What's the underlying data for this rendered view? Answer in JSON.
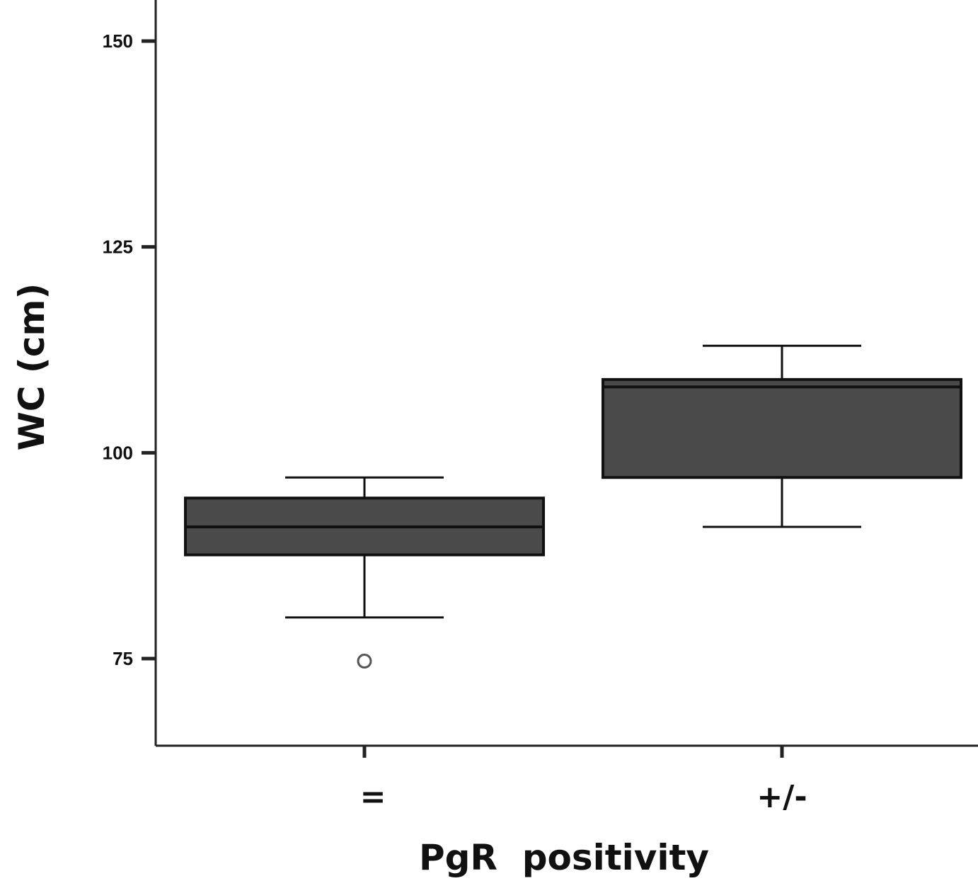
{
  "chart_data": {
    "type": "boxplot",
    "title": "",
    "xlabel": "PgR  positivity",
    "ylabel": "WC (cm)",
    "ylim": [
      64.5,
      155
    ],
    "yticks": [
      75,
      100,
      125,
      150
    ],
    "ytick_labels": [
      "75",
      "100",
      "125",
      "150"
    ],
    "grid": false,
    "categories": [
      "=",
      "+/-"
    ],
    "boxes": [
      {
        "category": "=",
        "whisker_low": 80,
        "q1": 87.6,
        "median": 91,
        "q3": 94.5,
        "whisker_high": 97,
        "outliers": [
          74.7
        ]
      },
      {
        "category": "+/-",
        "whisker_low": 91,
        "q1": 97,
        "median": 108,
        "q3": 108.9,
        "whisker_high": 113,
        "outliers": []
      }
    ],
    "colors": {
      "box_fill": "#4a4a4a",
      "stroke": "#111111",
      "outlier_stroke": "#555555"
    }
  }
}
